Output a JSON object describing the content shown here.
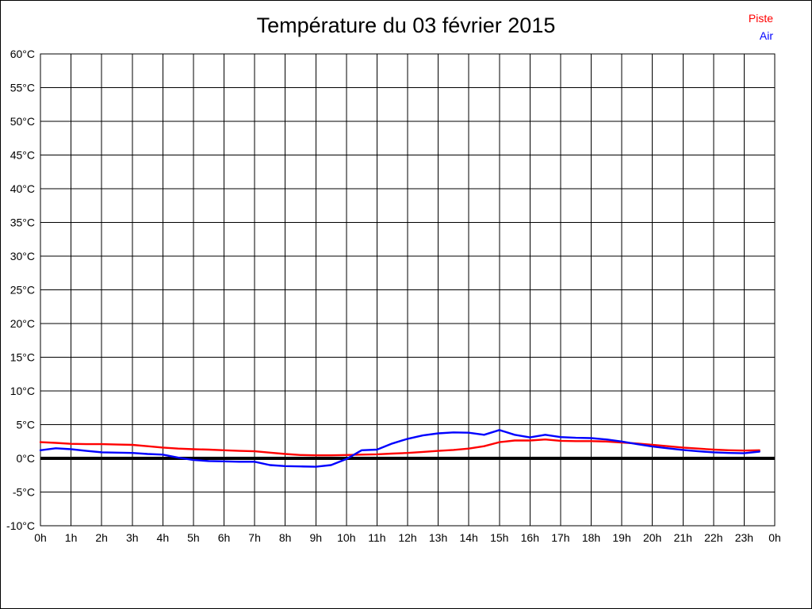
{
  "title": "Température du 03 février 2015",
  "legend": {
    "piste": "Piste",
    "air": "Air"
  },
  "colors": {
    "piste": "#ff0000",
    "air": "#0000ff",
    "grid": "#000000",
    "zero_line": "#000000",
    "background": "#ffffff",
    "border": "#000000",
    "text": "#000000"
  },
  "chart_data": {
    "type": "line",
    "title": "Température du 03 février 2015",
    "xlabel": "",
    "ylabel": "",
    "xlim": [
      0,
      24
    ],
    "ylim": [
      -10,
      60
    ],
    "x_tick_step": 1,
    "y_tick_step": 5,
    "grid": true,
    "zero_line_value": 0,
    "legend_position": "top-right",
    "x_tick_labels": [
      "0h",
      "1h",
      "2h",
      "3h",
      "4h",
      "5h",
      "6h",
      "7h",
      "8h",
      "9h",
      "10h",
      "11h",
      "12h",
      "13h",
      "14h",
      "15h",
      "16h",
      "17h",
      "18h",
      "19h",
      "20h",
      "21h",
      "22h",
      "23h",
      "0h"
    ],
    "y_tick_labels": [
      "60°C",
      "55°C",
      "50°C",
      "45°C",
      "40°C",
      "35°C",
      "30°C",
      "25°C",
      "20°C",
      "15°C",
      "10°C",
      "5°C",
      "0°C",
      "-5°C",
      "-10°C"
    ],
    "series": [
      {
        "name": "Piste",
        "color": "#ff0000",
        "points": [
          [
            0,
            2.4
          ],
          [
            0.5,
            2.3
          ],
          [
            1,
            2.15
          ],
          [
            1.5,
            2.1
          ],
          [
            2,
            2.1
          ],
          [
            2.5,
            2.05
          ],
          [
            3,
            2.0
          ],
          [
            3.5,
            1.8
          ],
          [
            4,
            1.6
          ],
          [
            4.5,
            1.45
          ],
          [
            5,
            1.35
          ],
          [
            5.5,
            1.3
          ],
          [
            6,
            1.2
          ],
          [
            6.5,
            1.1
          ],
          [
            7,
            1.05
          ],
          [
            7.5,
            0.85
          ],
          [
            8,
            0.65
          ],
          [
            8.5,
            0.5
          ],
          [
            9,
            0.45
          ],
          [
            9.5,
            0.45
          ],
          [
            10,
            0.5
          ],
          [
            10.5,
            0.55
          ],
          [
            11,
            0.6
          ],
          [
            11.5,
            0.7
          ],
          [
            12,
            0.8
          ],
          [
            12.5,
            0.95
          ],
          [
            13,
            1.1
          ],
          [
            13.5,
            1.25
          ],
          [
            14,
            1.45
          ],
          [
            14.5,
            1.8
          ],
          [
            15,
            2.4
          ],
          [
            15.5,
            2.65
          ],
          [
            16,
            2.65
          ],
          [
            16.5,
            2.8
          ],
          [
            17,
            2.6
          ],
          [
            17.5,
            2.55
          ],
          [
            18,
            2.55
          ],
          [
            18.5,
            2.5
          ],
          [
            19,
            2.35
          ],
          [
            19.5,
            2.2
          ],
          [
            20,
            2.0
          ],
          [
            20.5,
            1.8
          ],
          [
            21,
            1.6
          ],
          [
            21.5,
            1.45
          ],
          [
            22,
            1.3
          ],
          [
            22.5,
            1.2
          ],
          [
            23,
            1.15
          ],
          [
            23.5,
            1.2
          ]
        ]
      },
      {
        "name": "Air",
        "color": "#0000ff",
        "points": [
          [
            0,
            1.2
          ],
          [
            0.5,
            1.5
          ],
          [
            1,
            1.35
          ],
          [
            1.5,
            1.1
          ],
          [
            2,
            0.9
          ],
          [
            2.5,
            0.85
          ],
          [
            3,
            0.8
          ],
          [
            3.5,
            0.65
          ],
          [
            4,
            0.55
          ],
          [
            4.5,
            0.1
          ],
          [
            5,
            -0.25
          ],
          [
            5.5,
            -0.4
          ],
          [
            6,
            -0.45
          ],
          [
            6.5,
            -0.5
          ],
          [
            7,
            -0.5
          ],
          [
            7.5,
            -1.0
          ],
          [
            8,
            -1.15
          ],
          [
            8.5,
            -1.2
          ],
          [
            9,
            -1.25
          ],
          [
            9.5,
            -1.0
          ],
          [
            10,
            -0.1
          ],
          [
            10.5,
            1.2
          ],
          [
            11,
            1.3
          ],
          [
            11.5,
            2.2
          ],
          [
            12,
            2.9
          ],
          [
            12.5,
            3.4
          ],
          [
            13,
            3.7
          ],
          [
            13.5,
            3.85
          ],
          [
            14,
            3.8
          ],
          [
            14.5,
            3.5
          ],
          [
            15,
            4.2
          ],
          [
            15.5,
            3.5
          ],
          [
            16,
            3.1
          ],
          [
            16.5,
            3.5
          ],
          [
            17,
            3.15
          ],
          [
            17.5,
            3.05
          ],
          [
            18,
            3.0
          ],
          [
            18.5,
            2.8
          ],
          [
            19,
            2.5
          ],
          [
            19.5,
            2.1
          ],
          [
            20,
            1.75
          ],
          [
            20.5,
            1.5
          ],
          [
            21,
            1.25
          ],
          [
            21.5,
            1.05
          ],
          [
            22,
            0.9
          ],
          [
            22.5,
            0.8
          ],
          [
            23,
            0.75
          ],
          [
            23.5,
            1.0
          ]
        ]
      }
    ]
  }
}
